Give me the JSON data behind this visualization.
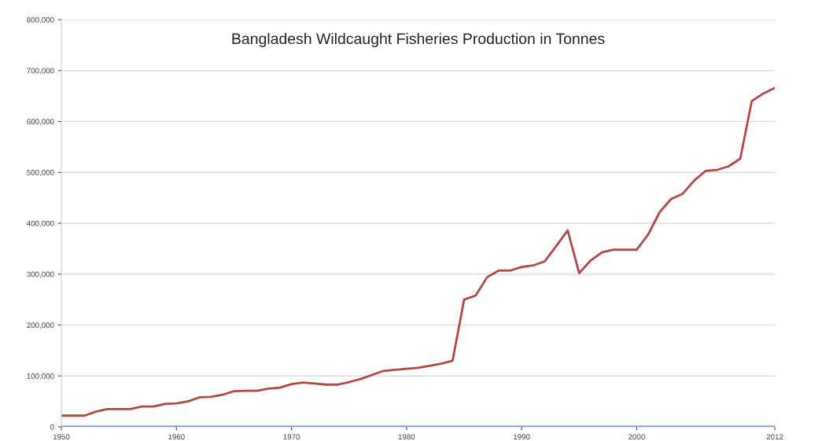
{
  "chart_data": {
    "type": "line",
    "title": "Bangladesh Wildcaught Fisheries Production in Tonnes",
    "x": [
      1950,
      1951,
      1952,
      1953,
      1954,
      1955,
      1956,
      1957,
      1958,
      1959,
      1960,
      1961,
      1962,
      1963,
      1964,
      1965,
      1966,
      1967,
      1968,
      1969,
      1970,
      1971,
      1972,
      1973,
      1974,
      1975,
      1976,
      1977,
      1978,
      1979,
      1980,
      1981,
      1982,
      1983,
      1984,
      1985,
      1986,
      1987,
      1988,
      1989,
      1990,
      1991,
      1992,
      1993,
      1994,
      1995,
      1996,
      1997,
      1998,
      1999,
      2000,
      2001,
      2002,
      2003,
      2004,
      2005,
      2006,
      2007,
      2008,
      2009,
      2010,
      2011,
      2012
    ],
    "series": [
      {
        "color": "#b04848",
        "values": [
          22000,
          22000,
          22000,
          30000,
          35000,
          35000,
          35000,
          40000,
          40000,
          45000,
          46000,
          50000,
          58000,
          59000,
          63000,
          70000,
          71000,
          71000,
          75000,
          77000,
          84000,
          87000,
          85000,
          83000,
          83000,
          88000,
          94000,
          102000,
          110000,
          112000,
          114000,
          116000,
          120000,
          124000,
          130000,
          250000,
          258000,
          294000,
          307000,
          307000,
          314000,
          317000,
          325000,
          355000,
          386000,
          302000,
          327000,
          343000,
          348000,
          348000,
          348000,
          378000,
          422000,
          448000,
          458000,
          484000,
          503000,
          505000,
          512000,
          527000,
          640000,
          655000,
          666000
        ]
      },
      {
        "color": "#4a72c4",
        "x": [
          1950,
          2012
        ],
        "values": [
          0,
          0
        ]
      }
    ],
    "xlim": [
      1950,
      2012
    ],
    "xticks": [
      1950,
      1960,
      1970,
      1980,
      1990,
      2000,
      2012
    ],
    "ylim": [
      0,
      800000
    ],
    "yticks": [
      0,
      {
        "value": 100000,
        "label": "100,000"
      },
      {
        "value": 200000,
        "label": "200,000"
      },
      {
        "value": 300000,
        "label": "300,000"
      },
      {
        "value": 400000,
        "label": "400,000"
      },
      {
        "value": 500000,
        "label": "500,000"
      },
      {
        "value": 600000,
        "label": "600,000"
      },
      {
        "value": 700000,
        "label": "700,000"
      },
      {
        "value": 800000,
        "label": "800,000"
      }
    ],
    "grid": "y"
  }
}
